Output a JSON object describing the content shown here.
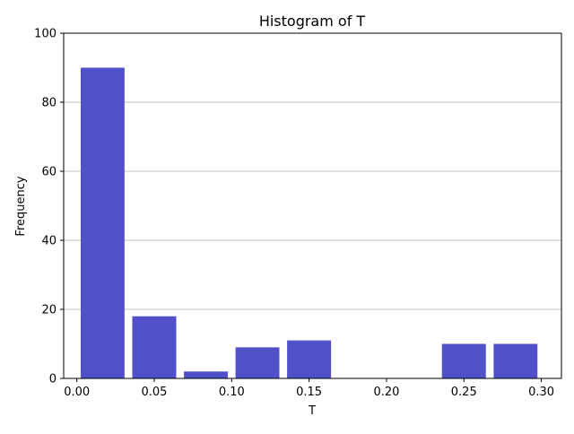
{
  "chart_data": {
    "type": "bar",
    "title": "Histogram of T",
    "xlabel": "T",
    "ylabel": "Frequency",
    "xlim": [
      -0.0085,
      0.313
    ],
    "ylim": [
      0,
      100
    ],
    "x_ticks": [
      0.0,
      0.05,
      0.1,
      0.15,
      0.2,
      0.25,
      0.3
    ],
    "x_tick_labels": [
      "0.00",
      "0.05",
      "0.10",
      "0.15",
      "0.20",
      "0.25",
      "0.30"
    ],
    "y_ticks": [
      0,
      20,
      40,
      60,
      80,
      100
    ],
    "y_tick_labels": [
      "0",
      "20",
      "40",
      "60",
      "80",
      "100"
    ],
    "grid": "horizontal",
    "bar_color": "#5050C8",
    "bins": [
      {
        "start": 0.0,
        "end": 0.0333,
        "value": 90
      },
      {
        "start": 0.0333,
        "end": 0.0667,
        "value": 18
      },
      {
        "start": 0.0667,
        "end": 0.1,
        "value": 2
      },
      {
        "start": 0.1,
        "end": 0.1333,
        "value": 9
      },
      {
        "start": 0.1333,
        "end": 0.1667,
        "value": 11
      },
      {
        "start": 0.1667,
        "end": 0.2,
        "value": 0
      },
      {
        "start": 0.2,
        "end": 0.2333,
        "value": 0
      },
      {
        "start": 0.2333,
        "end": 0.2667,
        "value": 10
      },
      {
        "start": 0.2667,
        "end": 0.3,
        "value": 10
      }
    ]
  }
}
